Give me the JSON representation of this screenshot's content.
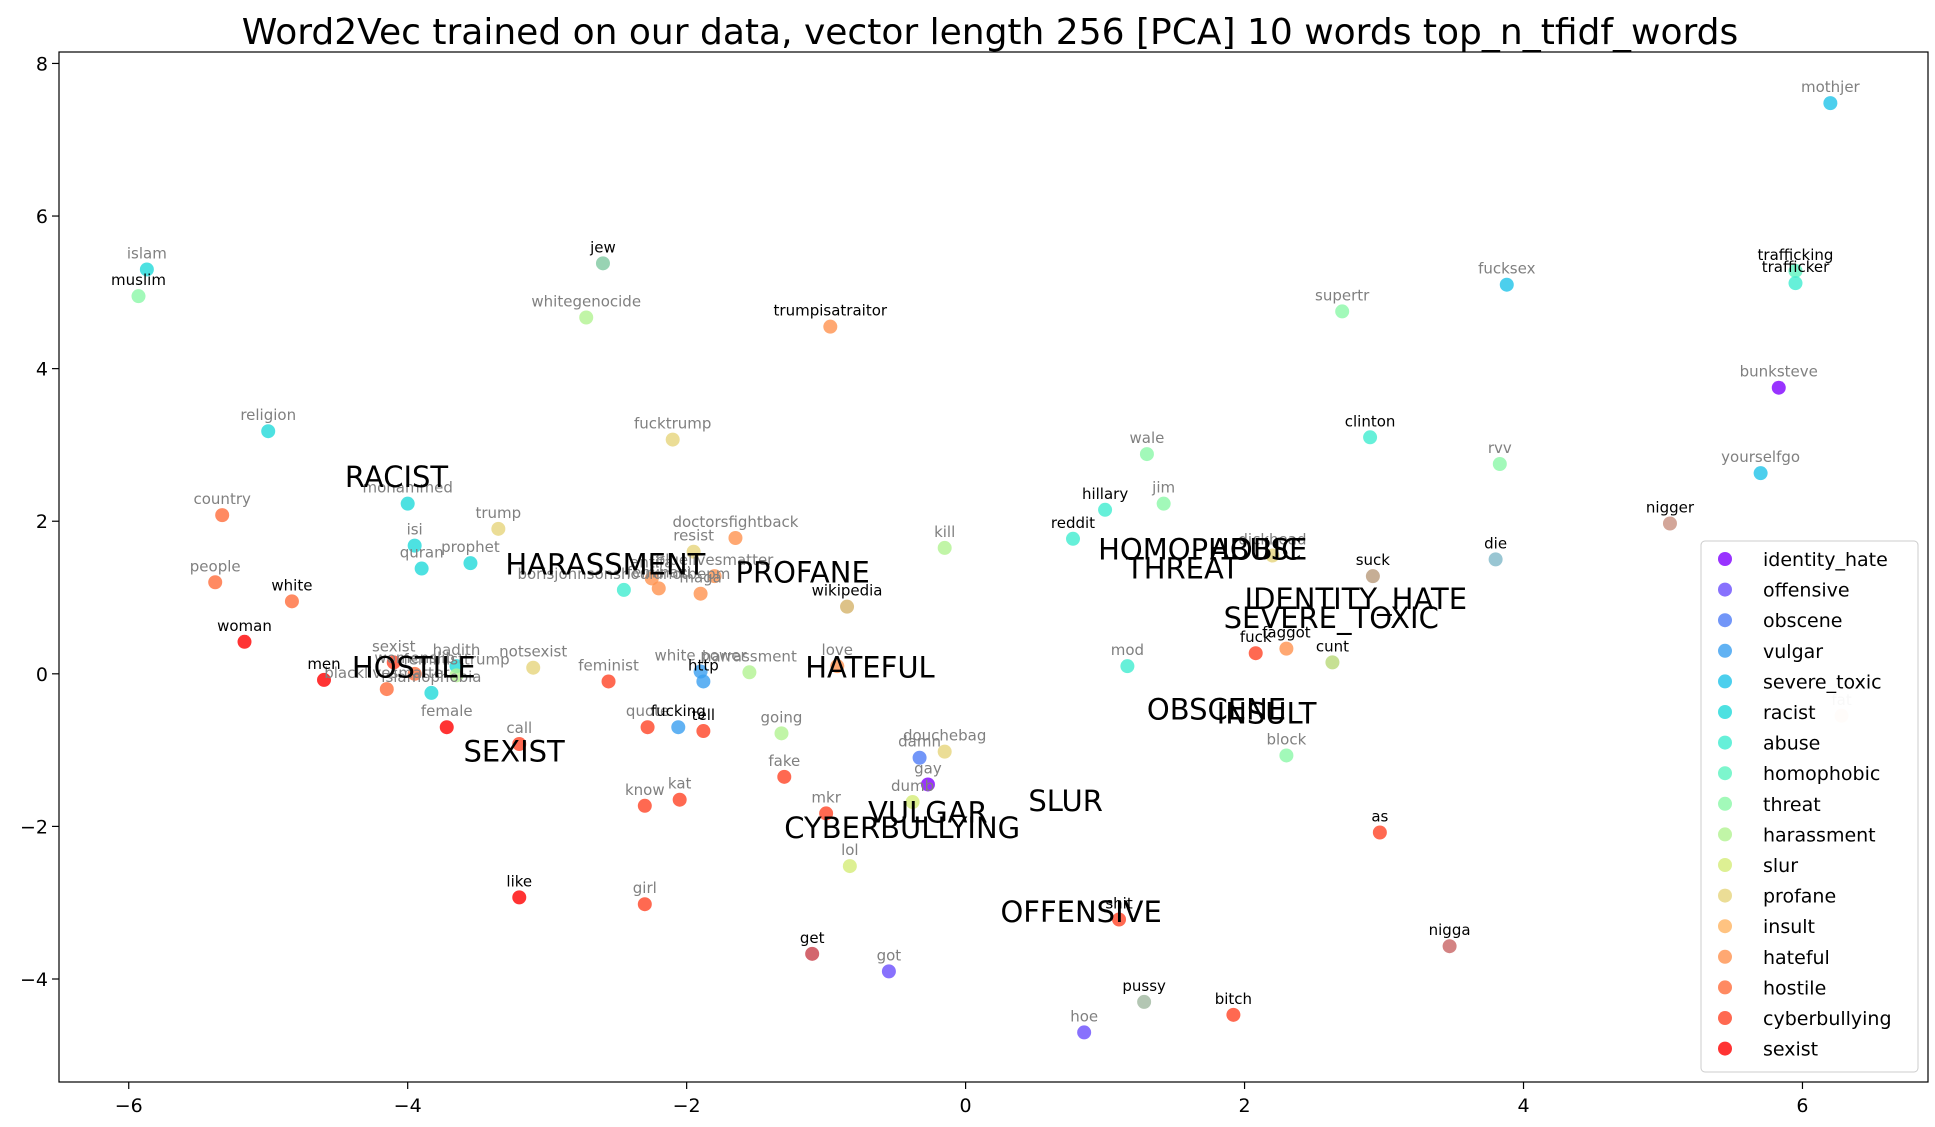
{
  "chart_data": {
    "type": "scatter",
    "title": "Word2Vec trained on our data, vector length 256 [PCA] 10 words top_n_tfidf_words",
    "xlim": [
      -6.5,
      6.9
    ],
    "ylim": [
      -5.35,
      8.15
    ],
    "x_ticks": [
      -6,
      -4,
      -2,
      0,
      2,
      4,
      6
    ],
    "y_ticks": [
      -4,
      -2,
      0,
      2,
      4,
      6,
      8
    ],
    "x_tick_labels": [
      "−6",
      "−4",
      "−2",
      "0",
      "2",
      "4",
      "6"
    ],
    "y_tick_labels": [
      "−4",
      "−2",
      "0",
      "2",
      "4",
      "6",
      "8"
    ],
    "grid": false,
    "legend_position": "lower right",
    "legend": [
      {
        "name": "identity_hate",
        "color": "#8000ff"
      },
      {
        "name": "offensive",
        "color": "#6a4dfc"
      },
      {
        "name": "obscene",
        "color": "#4f7cf6"
      },
      {
        "name": "vulgar",
        "color": "#3a9ff0"
      },
      {
        "name": "severe_toxic",
        "color": "#1fc3e8"
      },
      {
        "name": "racist",
        "color": "#20d9d9"
      },
      {
        "name": "abuse",
        "color": "#40ecd0"
      },
      {
        "name": "homophobic",
        "color": "#5cf4c0"
      },
      {
        "name": "threat",
        "color": "#8bf7a8"
      },
      {
        "name": "harassment",
        "color": "#b2f391"
      },
      {
        "name": "slur",
        "color": "#d4ec78"
      },
      {
        "name": "profane",
        "color": "#e6d57c"
      },
      {
        "name": "insult",
        "color": "#ffb462"
      },
      {
        "name": "hateful",
        "color": "#ff924f"
      },
      {
        "name": "hostile",
        "color": "#ff6d3b"
      },
      {
        "name": "cyberbullying",
        "color": "#ff4426"
      },
      {
        "name": "sexist",
        "color": "#ff0000"
      }
    ],
    "category_labels": [
      {
        "text": "RACIST",
        "x": -4.45,
        "y": 2.45
      },
      {
        "text": "HARASSMENT",
        "x": -3.3,
        "y": 1.3
      },
      {
        "text": "PROFANE",
        "x": -1.65,
        "y": 1.2
      },
      {
        "text": "HATEFUL",
        "x": -1.15,
        "y": -0.05
      },
      {
        "text": "HOSTILE",
        "x": -4.4,
        "y": -0.05
      },
      {
        "text": "SEXIST",
        "x": -3.6,
        "y": -1.15
      },
      {
        "text": "HOMOPHOBIC",
        "x": 0.95,
        "y": 1.5
      },
      {
        "text": "ABUSE",
        "x": 1.75,
        "y": 1.5
      },
      {
        "text": "THREAT",
        "x": 1.15,
        "y": 1.25
      },
      {
        "text": "IDENTITY_HATE",
        "x": 2.0,
        "y": 0.85
      },
      {
        "text": "SEVERE_TOXIC",
        "x": 1.85,
        "y": 0.6
      },
      {
        "text": "OBSCENE",
        "x": 1.3,
        "y": -0.6
      },
      {
        "text": "INSULT",
        "x": 1.8,
        "y": -0.65
      },
      {
        "text": "SLUR",
        "x": 0.45,
        "y": -1.8
      },
      {
        "text": "VULGAR",
        "x": -0.7,
        "y": -1.95
      },
      {
        "text": "CYBERBULLYING",
        "x": -1.3,
        "y": -2.15
      },
      {
        "text": "OFFENSIVE",
        "x": 0.25,
        "y": -3.25
      }
    ],
    "points": [
      {
        "word": "islam",
        "x": -5.87,
        "y": 5.3,
        "color": "#20d9d9",
        "label_color": "#808080"
      },
      {
        "word": "muslim",
        "x": -5.93,
        "y": 4.95,
        "color": "#8bf7a8",
        "label_color": "#000000"
      },
      {
        "word": "jew",
        "x": -2.6,
        "y": 5.38,
        "color": "#7ec8a0",
        "label_color": "#000000"
      },
      {
        "word": "whitegenocide",
        "x": -2.72,
        "y": 4.67,
        "color": "#b2f391",
        "label_color": "#808080"
      },
      {
        "word": "trumpisatraitor",
        "x": -0.97,
        "y": 4.55,
        "color": "#ff924f",
        "label_color": "#000000"
      },
      {
        "word": "fucktrump",
        "x": -2.1,
        "y": 3.07,
        "color": "#e6d57c",
        "label_color": "#808080"
      },
      {
        "word": "religion",
        "x": -5.0,
        "y": 3.18,
        "color": "#20d9d9",
        "label_color": "#808080"
      },
      {
        "word": "mohammed",
        "x": -4.0,
        "y": 2.23,
        "color": "#20d9d9",
        "label_color": "#808080"
      },
      {
        "word": "country",
        "x": -5.33,
        "y": 2.08,
        "color": "#ff6d3b",
        "label_color": "#808080"
      },
      {
        "word": "trump",
        "x": -3.35,
        "y": 1.9,
        "color": "#e6d57c",
        "label_color": "#808080"
      },
      {
        "word": "isi",
        "x": -3.95,
        "y": 1.68,
        "color": "#20d9d9",
        "label_color": "#808080"
      },
      {
        "word": "quran",
        "x": -3.9,
        "y": 1.38,
        "color": "#20d9d9",
        "label_color": "#808080"
      },
      {
        "word": "prophet",
        "x": -3.55,
        "y": 1.45,
        "color": "#20d9d9",
        "label_color": "#808080"
      },
      {
        "word": "people",
        "x": -5.38,
        "y": 1.2,
        "color": "#ff6d3b",
        "label_color": "#808080"
      },
      {
        "word": "white",
        "x": -4.83,
        "y": 0.95,
        "color": "#ff6d3b",
        "label_color": "#000000"
      },
      {
        "word": "doctorsfightback",
        "x": -1.65,
        "y": 1.78,
        "color": "#ff924f",
        "label_color": "#808080"
      },
      {
        "word": "resist",
        "x": -1.95,
        "y": 1.6,
        "color": "#e6d57c",
        "label_color": "#808080"
      },
      {
        "word": "borisjohnsonshouldnotbepm",
        "x": -2.45,
        "y": 1.1,
        "color": "#40ecd0",
        "label_color": "#808080"
      },
      {
        "word": "bluelivesmatter",
        "x": -1.8,
        "y": 1.28,
        "color": "#ff924f",
        "label_color": "#808080"
      },
      {
        "word": "antifa",
        "x": -2.25,
        "y": 1.25,
        "color": "#ff924f",
        "label_color": "#808080"
      },
      {
        "word": "feminazi",
        "x": -2.2,
        "y": 1.12,
        "color": "#ff924f",
        "label_color": "#808080"
      },
      {
        "word": "maga",
        "x": -1.9,
        "y": 1.05,
        "color": "#ff924f",
        "label_color": "#808080"
      },
      {
        "word": "wikipedia",
        "x": -0.85,
        "y": 0.88,
        "color": "#d4b36a",
        "label_color": "#000000"
      },
      {
        "word": "kill",
        "x": -0.15,
        "y": 1.65,
        "color": "#b2f391",
        "label_color": "#808080"
      },
      {
        "word": "sexist",
        "x": -4.1,
        "y": 0.15,
        "color": "#ff4426",
        "label_color": "#808080"
      },
      {
        "word": "hadith",
        "x": -3.65,
        "y": 0.1,
        "color": "#20d9d9",
        "label_color": "#808080"
      },
      {
        "word": "feministtrump",
        "x": -3.65,
        "y": -0.02,
        "color": "#b2f391",
        "label_color": "#808080"
      },
      {
        "word": "womenslib",
        "x": -3.95,
        "y": 0.0,
        "color": "#ff6d3b",
        "label_color": "#808080"
      },
      {
        "word": "blacklivesmatter",
        "x": -4.15,
        "y": -0.2,
        "color": "#ff6d3b",
        "label_color": "#808080"
      },
      {
        "word": "notsexist",
        "x": -3.1,
        "y": 0.08,
        "color": "#e6d57c",
        "label_color": "#808080"
      },
      {
        "word": "woman",
        "x": -5.17,
        "y": 0.42,
        "color": "#ff0000",
        "label_color": "#000000"
      },
      {
        "word": "men",
        "x": -4.6,
        "y": -0.08,
        "color": "#ff0000",
        "label_color": "#000000"
      },
      {
        "word": "female",
        "x": -3.72,
        "y": -0.7,
        "color": "#ff0000",
        "label_color": "#808080"
      },
      {
        "word": "islamophobia",
        "x": -3.83,
        "y": -0.25,
        "color": "#20d9d9",
        "label_color": "#808080"
      },
      {
        "word": "call",
        "x": -3.2,
        "y": -0.92,
        "color": "#ff4426",
        "label_color": "#808080"
      },
      {
        "word": "feminist",
        "x": -2.56,
        "y": -0.1,
        "color": "#ff4426",
        "label_color": "#808080"
      },
      {
        "word": "white power",
        "x": -1.9,
        "y": 0.03,
        "color": "#3a9ff0",
        "label_color": "#808080"
      },
      {
        "word": "http",
        "x": -1.88,
        "y": -0.1,
        "color": "#3a9ff0",
        "label_color": "#000000"
      },
      {
        "word": "harrassment",
        "x": -1.55,
        "y": 0.02,
        "color": "#b2f391",
        "label_color": "#808080"
      },
      {
        "word": "love",
        "x": -0.92,
        "y": 0.1,
        "color": "#ff924f",
        "label_color": "#808080"
      },
      {
        "word": "quote",
        "x": -2.28,
        "y": -0.7,
        "color": "#ff4426",
        "label_color": "#808080"
      },
      {
        "word": "fucking",
        "x": -2.06,
        "y": -0.7,
        "color": "#3a9ff0",
        "label_color": "#000000"
      },
      {
        "word": "tell",
        "x": -1.88,
        "y": -0.75,
        "color": "#ff4426",
        "label_color": "#000000"
      },
      {
        "word": "going",
        "x": -1.32,
        "y": -0.78,
        "color": "#b2f391",
        "label_color": "#808080"
      },
      {
        "word": "fake",
        "x": -1.3,
        "y": -1.35,
        "color": "#ff4426",
        "label_color": "#808080"
      },
      {
        "word": "know",
        "x": -2.3,
        "y": -1.73,
        "color": "#ff4426",
        "label_color": "#808080"
      },
      {
        "word": "kat",
        "x": -2.05,
        "y": -1.65,
        "color": "#ff4426",
        "label_color": "#808080"
      },
      {
        "word": "mkr",
        "x": -1.0,
        "y": -1.83,
        "color": "#ff4426",
        "label_color": "#808080"
      },
      {
        "word": "douchebag",
        "x": -0.15,
        "y": -1.02,
        "color": "#e6d57c",
        "label_color": "#808080"
      },
      {
        "word": "damn",
        "x": -0.33,
        "y": -1.1,
        "color": "#4f7cf6",
        "label_color": "#808080"
      },
      {
        "word": "gay",
        "x": -0.27,
        "y": -1.45,
        "color": "#8000ff",
        "label_color": "#808080"
      },
      {
        "word": "dumb",
        "x": -0.38,
        "y": -1.68,
        "color": "#d4ec78",
        "label_color": "#808080"
      },
      {
        "word": "lol",
        "x": -0.83,
        "y": -2.52,
        "color": "#d4ec78",
        "label_color": "#808080"
      },
      {
        "word": "like",
        "x": -3.2,
        "y": -2.93,
        "color": "#ff0000",
        "label_color": "#000000"
      },
      {
        "word": "girl",
        "x": -2.3,
        "y": -3.02,
        "color": "#ff4426",
        "label_color": "#808080"
      },
      {
        "word": "get",
        "x": -1.1,
        "y": -3.67,
        "color": "#c8404a",
        "label_color": "#000000"
      },
      {
        "word": "got",
        "x": -0.55,
        "y": -3.9,
        "color": "#6a4dfc",
        "label_color": "#808080"
      },
      {
        "word": "hillary",
        "x": 1.0,
        "y": 2.15,
        "color": "#40ecd0",
        "label_color": "#000000"
      },
      {
        "word": "reddit",
        "x": 0.77,
        "y": 1.77,
        "color": "#40ecd0",
        "label_color": "#000000"
      },
      {
        "word": "wale",
        "x": 1.3,
        "y": 2.88,
        "color": "#8bf7a8",
        "label_color": "#808080"
      },
      {
        "word": "jim",
        "x": 1.42,
        "y": 2.23,
        "color": "#8bf7a8",
        "label_color": "#808080"
      },
      {
        "word": "dickhead",
        "x": 2.2,
        "y": 1.55,
        "color": "#e6d57c",
        "label_color": "#808080"
      },
      {
        "word": "suck",
        "x": 2.92,
        "y": 1.28,
        "color": "#b89a7a",
        "label_color": "#000000"
      },
      {
        "word": "mod",
        "x": 1.16,
        "y": 0.1,
        "color": "#40ecd0",
        "label_color": "#808080"
      },
      {
        "word": "fuck",
        "x": 2.08,
        "y": 0.27,
        "color": "#ff4426",
        "label_color": "#000000"
      },
      {
        "word": "faggot",
        "x": 2.3,
        "y": 0.33,
        "color": "#ff924f",
        "label_color": "#000000"
      },
      {
        "word": "cunt",
        "x": 2.63,
        "y": 0.15,
        "color": "#b8d878",
        "label_color": "#000000"
      },
      {
        "word": "block",
        "x": 2.3,
        "y": -1.07,
        "color": "#8bf7a8",
        "label_color": "#808080"
      },
      {
        "word": "shit",
        "x": 1.1,
        "y": -3.22,
        "color": "#ff4426",
        "label_color": "#000000"
      },
      {
        "word": "pussy",
        "x": 1.28,
        "y": -4.3,
        "color": "#a0b8a0",
        "label_color": "#000000"
      },
      {
        "word": "hoe",
        "x": 0.85,
        "y": -4.7,
        "color": "#6a4dfc",
        "label_color": "#808080"
      },
      {
        "word": "bitch",
        "x": 1.92,
        "y": -4.47,
        "color": "#ff4426",
        "label_color": "#000000"
      },
      {
        "word": "as",
        "x": 2.97,
        "y": -2.08,
        "color": "#ff4426",
        "label_color": "#000000"
      },
      {
        "word": "nigga",
        "x": 3.47,
        "y": -3.57,
        "color": "#c86464",
        "label_color": "#000000"
      },
      {
        "word": "supertr",
        "x": 2.7,
        "y": 4.75,
        "color": "#8bf7a8",
        "label_color": "#808080"
      },
      {
        "word": "clinton",
        "x": 2.9,
        "y": 3.1,
        "color": "#40ecd0",
        "label_color": "#000000"
      },
      {
        "word": "rvv",
        "x": 3.83,
        "y": 2.75,
        "color": "#8bf7a8",
        "label_color": "#808080"
      },
      {
        "word": "fucksex",
        "x": 3.88,
        "y": 5.1,
        "color": "#1fc3e8",
        "label_color": "#808080"
      },
      {
        "word": "die",
        "x": 3.8,
        "y": 1.5,
        "color": "#80b8c8",
        "label_color": "#000000"
      },
      {
        "word": "mothjer",
        "x": 6.2,
        "y": 7.48,
        "color": "#1fc3e8",
        "label_color": "#808080"
      },
      {
        "word": "trafficking",
        "x": 5.95,
        "y": 5.28,
        "color": "#5cf4c0",
        "label_color": "#000000"
      },
      {
        "word": "trafficker",
        "x": 5.95,
        "y": 5.12,
        "color": "#40ecd0",
        "label_color": "#000000"
      },
      {
        "word": "bunksteve",
        "x": 5.83,
        "y": 3.75,
        "color": "#8000ff",
        "label_color": "#808080"
      },
      {
        "word": "yourselfgo",
        "x": 5.7,
        "y": 2.63,
        "color": "#1fc3e8",
        "label_color": "#808080"
      },
      {
        "word": "nigger",
        "x": 5.05,
        "y": 1.97,
        "color": "#c89080",
        "label_color": "#000000"
      },
      {
        "word": "fat",
        "x": 6.28,
        "y": -0.55,
        "color": "#ffe0d0",
        "label_color": "#d0d0d0"
      }
    ]
  }
}
